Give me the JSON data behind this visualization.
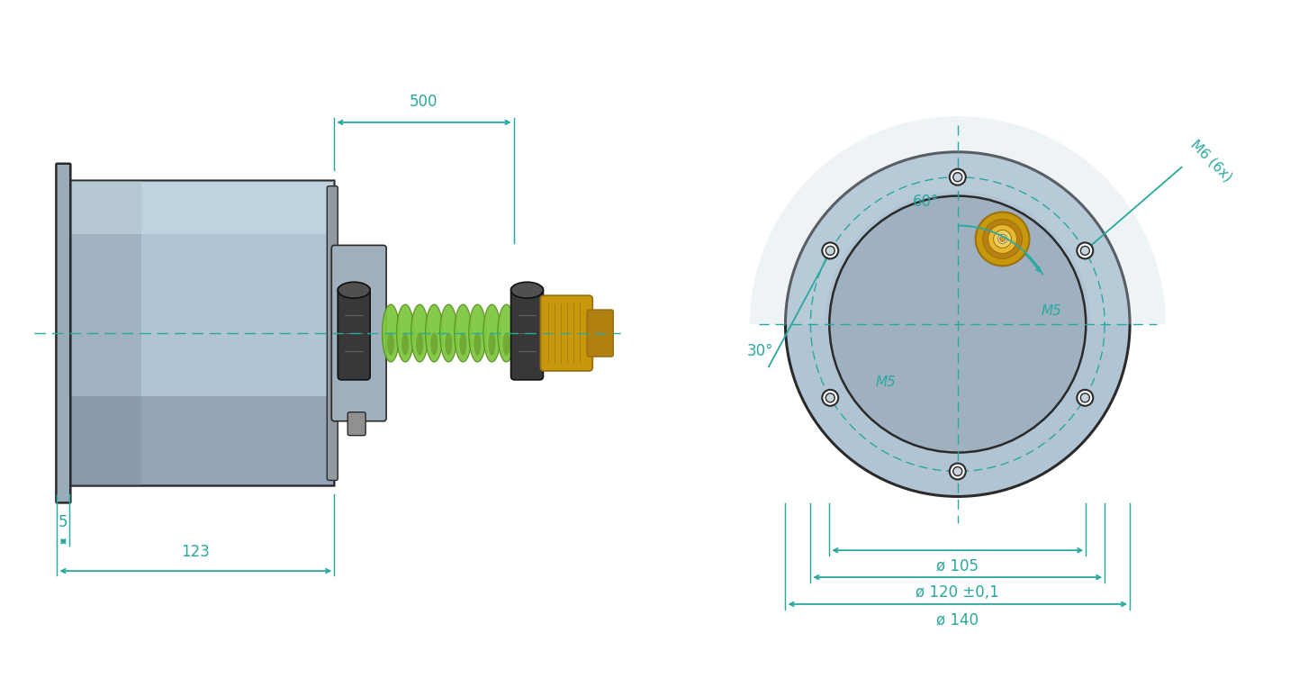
{
  "bg_color": "#ffffff",
  "dim_color": "#29a89e",
  "body_fill": "#b0c4d4",
  "body_fill2": "#c8d8e4",
  "body_fill_dark": "#7a8e9e",
  "body_edge": "#2a2a2a",
  "flange_fill": "#9aacb8",
  "connector_fill": "#a0b0bc",
  "clamp_fill": "#383838",
  "clamp_edge": "#111111",
  "green_cable": "#7ec840",
  "green_cable_dark": "#5a9020",
  "brass_fill": "#c8980c",
  "brass_dark": "#9a7010",
  "brass_light": "#e8b830",
  "nut_fill": "#b08010",
  "body_lw": 1.8,
  "dim_lw": 1.3,
  "font_size": 12,
  "phi_105": "ø 105",
  "phi_120": "ø 120 ±0,1",
  "phi_140": "ø 140",
  "label_m5": "M5",
  "label_m6": "M6 (6x)",
  "label_60": "60°",
  "label_30": "30°",
  "label_5": "5",
  "label_123": "123",
  "label_500": "500"
}
